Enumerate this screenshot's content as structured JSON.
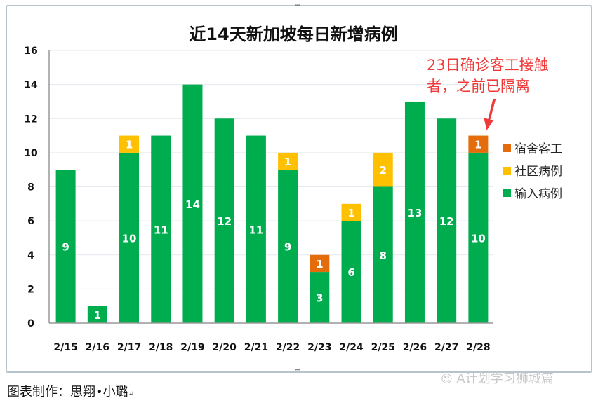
{
  "chart_data": {
    "type": "bar",
    "stacked": true,
    "title": "近14天新加坡每日新增病例",
    "categories": [
      "2/15",
      "2/16",
      "2/17",
      "2/18",
      "2/19",
      "2/20",
      "2/21",
      "2/22",
      "2/23",
      "2/24",
      "2/25",
      "2/26",
      "2/27",
      "2/28"
    ],
    "series": [
      {
        "name": "输入病例",
        "color": "#00ad4e",
        "values": [
          9,
          1,
          10,
          11,
          14,
          12,
          11,
          9,
          3,
          6,
          8,
          13,
          12,
          10
        ]
      },
      {
        "name": "社区病例",
        "color": "#ffc000",
        "values": [
          0,
          0,
          1,
          0,
          0,
          0,
          0,
          1,
          0,
          1,
          2,
          0,
          0,
          0
        ]
      },
      {
        "name": "宿舍客工",
        "color": "#e46c0a",
        "values": [
          0,
          0,
          0,
          0,
          0,
          0,
          0,
          0,
          1,
          0,
          0,
          0,
          0,
          1
        ]
      }
    ],
    "legend_order": [
      "宿舍客工",
      "社区病例",
      "输入病例"
    ],
    "legend_position": "right",
    "ylim": [
      0,
      16
    ],
    "yticks": [
      0,
      2,
      4,
      6,
      8,
      10,
      12,
      14,
      16
    ],
    "xlabel": "",
    "ylabel": "",
    "grid": true,
    "annotation": {
      "lines": [
        "23日确诊客工接触",
        "者，之前已隔离"
      ],
      "target_category": "2/28",
      "color": "#f03a3a"
    }
  },
  "footer": {
    "credit": "图表制作：思翔•小璐",
    "credit_mark": "↵",
    "watermark": "A计划学习狮城篇"
  }
}
